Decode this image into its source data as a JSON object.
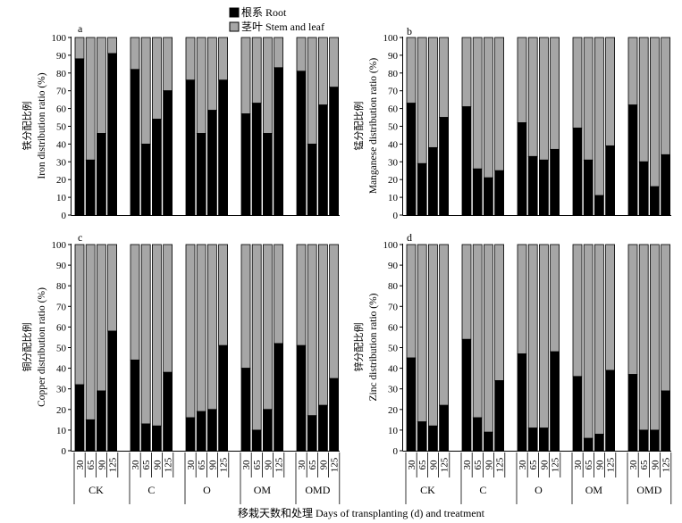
{
  "legend": {
    "items": [
      {
        "label": "根系 Root",
        "color": "#000000"
      },
      {
        "label": "茎叶 Stem and leaf",
        "color": "#a6a6a6"
      }
    ]
  },
  "xlabel": "移栽天数和处理 Days of transplanting (d) and treatment",
  "treatments": [
    "CK",
    "C",
    "O",
    "OM",
    "OMD"
  ],
  "days": [
    "30",
    "65",
    "90",
    "125"
  ],
  "colors": {
    "root": "#000000",
    "stem": "#a6a6a6"
  },
  "chart_data": [
    {
      "type": "bar",
      "stacked": true,
      "panel": "a",
      "ylabel_cn": "铁分配比例",
      "ylabel_en": "Iron distribution ratio (%)",
      "ylim": [
        0,
        100
      ],
      "yticks": [
        0,
        10,
        20,
        30,
        40,
        50,
        60,
        70,
        80,
        90,
        100
      ],
      "groups": [
        "CK",
        "C",
        "O",
        "OM",
        "OMD"
      ],
      "days": [
        "30",
        "65",
        "90",
        "125"
      ],
      "series": [
        {
          "name": "根系 Root",
          "values": [
            [
              88,
              31,
              46,
              91
            ],
            [
              82,
              40,
              54,
              70
            ],
            [
              76,
              46,
              59,
              76
            ],
            [
              57,
              63,
              46,
              83
            ],
            [
              81,
              40,
              62,
              72
            ]
          ]
        },
        {
          "name": "茎叶 Stem and leaf",
          "values": [
            [
              12,
              69,
              54,
              9
            ],
            [
              18,
              60,
              46,
              30
            ],
            [
              24,
              54,
              41,
              24
            ],
            [
              43,
              37,
              54,
              17
            ],
            [
              19,
              60,
              38,
              28
            ]
          ]
        }
      ]
    },
    {
      "type": "bar",
      "stacked": true,
      "panel": "b",
      "ylabel_cn": "锰分配比例",
      "ylabel_en": "Manganese distribution ratio (%)",
      "ylim": [
        0,
        100
      ],
      "yticks": [
        0,
        10,
        20,
        30,
        40,
        50,
        60,
        70,
        80,
        90,
        100
      ],
      "groups": [
        "CK",
        "C",
        "O",
        "OM",
        "OMD"
      ],
      "days": [
        "30",
        "65",
        "90",
        "125"
      ],
      "series": [
        {
          "name": "根系 Root",
          "values": [
            [
              63,
              29,
              38,
              55
            ],
            [
              61,
              26,
              21,
              25
            ],
            [
              52,
              33,
              31,
              37
            ],
            [
              49,
              31,
              11,
              39
            ],
            [
              62,
              30,
              16,
              34
            ]
          ]
        },
        {
          "name": "茎叶 Stem and leaf",
          "values": [
            [
              37,
              71,
              62,
              45
            ],
            [
              39,
              74,
              79,
              75
            ],
            [
              48,
              67,
              69,
              63
            ],
            [
              51,
              69,
              89,
              61
            ],
            [
              38,
              70,
              84,
              66
            ]
          ]
        }
      ]
    },
    {
      "type": "bar",
      "stacked": true,
      "panel": "c",
      "ylabel_cn": "铜分配比例",
      "ylabel_en": "Copper distribution ratio (%)",
      "ylim": [
        0,
        100
      ],
      "yticks": [
        0,
        10,
        20,
        30,
        40,
        50,
        60,
        70,
        80,
        90,
        100
      ],
      "groups": [
        "CK",
        "C",
        "O",
        "OM",
        "OMD"
      ],
      "days": [
        "30",
        "65",
        "90",
        "125"
      ],
      "series": [
        {
          "name": "根系 Root",
          "values": [
            [
              32,
              15,
              29,
              58
            ],
            [
              44,
              13,
              12,
              38
            ],
            [
              16,
              19,
              20,
              51
            ],
            [
              40,
              10,
              20,
              52
            ],
            [
              51,
              17,
              22,
              35
            ]
          ]
        },
        {
          "name": "茎叶 Stem and leaf",
          "values": [
            [
              68,
              85,
              71,
              42
            ],
            [
              56,
              87,
              88,
              62
            ],
            [
              84,
              81,
              80,
              49
            ],
            [
              60,
              90,
              80,
              48
            ],
            [
              49,
              83,
              78,
              65
            ]
          ]
        }
      ]
    },
    {
      "type": "bar",
      "stacked": true,
      "panel": "d",
      "ylabel_cn": "锌分配比例",
      "ylabel_en": "Zinc distribution ratio (%)",
      "ylim": [
        0,
        100
      ],
      "yticks": [
        0,
        10,
        20,
        30,
        40,
        50,
        60,
        70,
        80,
        90,
        100
      ],
      "groups": [
        "CK",
        "C",
        "O",
        "OM",
        "OMD"
      ],
      "days": [
        "30",
        "65",
        "90",
        "125"
      ],
      "series": [
        {
          "name": "根系 Root",
          "values": [
            [
              45,
              14,
              12,
              22
            ],
            [
              54,
              16,
              9,
              34
            ],
            [
              47,
              11,
              11,
              48
            ],
            [
              36,
              6,
              8,
              39
            ],
            [
              37,
              10,
              10,
              29
            ]
          ]
        },
        {
          "name": "茎叶 Stem and leaf",
          "values": [
            [
              55,
              86,
              88,
              78
            ],
            [
              46,
              84,
              91,
              66
            ],
            [
              53,
              89,
              89,
              52
            ],
            [
              64,
              94,
              92,
              61
            ],
            [
              63,
              90,
              90,
              71
            ]
          ]
        }
      ]
    }
  ]
}
